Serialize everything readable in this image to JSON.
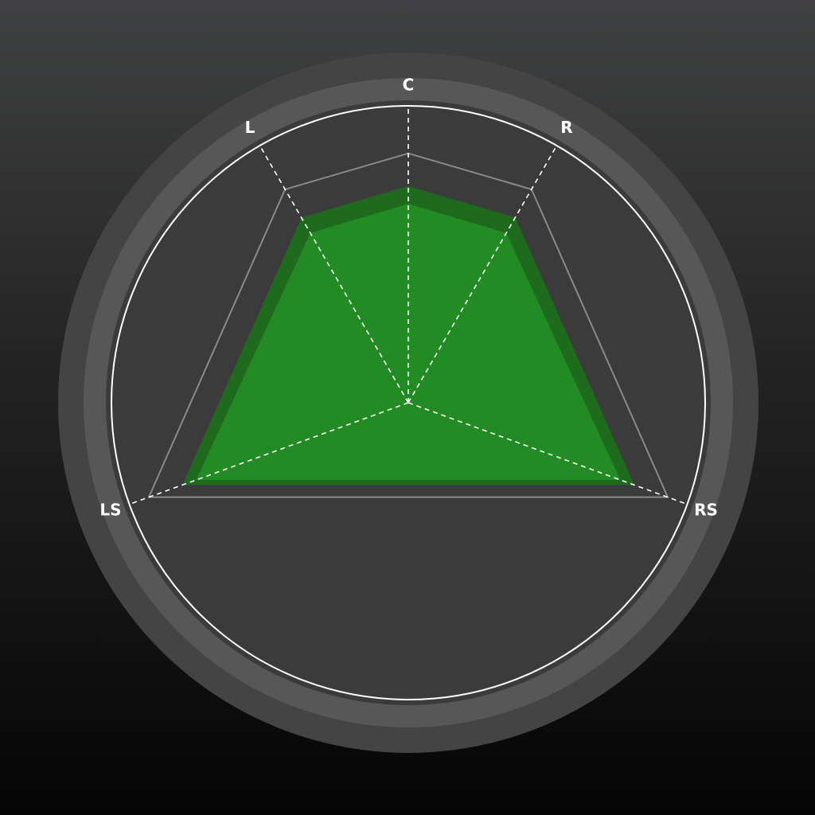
{
  "meter": {
    "type": "surround-panner",
    "channels": [
      {
        "label": "C",
        "angle_deg": 0
      },
      {
        "label": "R",
        "angle_deg": 30
      },
      {
        "label": "RS",
        "angle_deg": 110
      },
      {
        "label": "LS",
        "angle_deg": -110
      },
      {
        "label": "L",
        "angle_deg": -30
      }
    ],
    "inner_fill_level": [
      0.67,
      0.66,
      0.76,
      0.76,
      0.66
    ],
    "outer_fill_level": [
      0.73,
      0.72,
      0.81,
      0.81,
      0.72
    ],
    "peak_outline_level": [
      0.84,
      0.83,
      0.93,
      0.93,
      0.83
    ],
    "colors": {
      "outer_bezel": "#444444",
      "bezel_ring": "#575757",
      "face": "#3b3b3b",
      "scale_ring": "#ffffff",
      "fill_outer": "#1e6b1e",
      "fill_inner": "#238b23",
      "peak_outline": "#8a8a8a",
      "spokes": "#ffffff"
    }
  }
}
